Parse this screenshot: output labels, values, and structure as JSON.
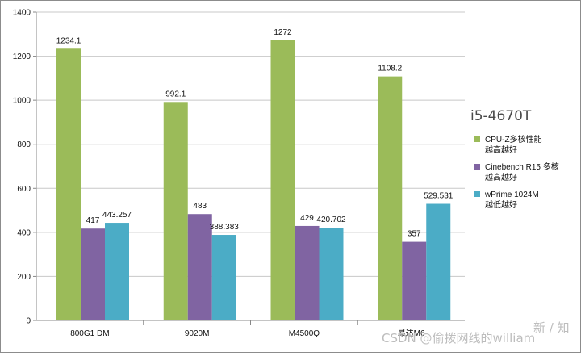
{
  "chart_data": {
    "type": "bar",
    "title": "",
    "inset_title": "i5-4670T",
    "xlabel": "",
    "ylabel": "",
    "ylim": [
      0,
      1400
    ],
    "yticks": [
      0,
      200,
      400,
      600,
      800,
      1000,
      1200,
      1400
    ],
    "grid": true,
    "legend_position": "right",
    "categories": [
      "800G1 DM",
      "9020M",
      "M4500Q",
      "昂达M6"
    ],
    "series": [
      {
        "name": "CPU-Z多核性能",
        "note": "越高越好",
        "color": "#9bbb59",
        "values": [
          1234.1,
          992.1,
          1272,
          1108.2
        ],
        "labels": [
          "1234.1",
          "992.1",
          "1272",
          "1108.2"
        ]
      },
      {
        "name": "Cinebench R15 多核",
        "note": "越高越好",
        "color": "#8064a2",
        "values": [
          417,
          483,
          429,
          357
        ],
        "labels": [
          "417",
          "483",
          "429",
          "357"
        ]
      },
      {
        "name": "wPrime 1024M",
        "note": "越低越好",
        "color": "#4bacc6",
        "values": [
          443.257,
          388.383,
          420.702,
          529.531
        ],
        "labels": [
          "443.257",
          "388.383",
          "420.702",
          "529.531"
        ]
      }
    ]
  },
  "watermark": "CSDN @偷拨网线的william",
  "corner_mark": "新 / 知"
}
